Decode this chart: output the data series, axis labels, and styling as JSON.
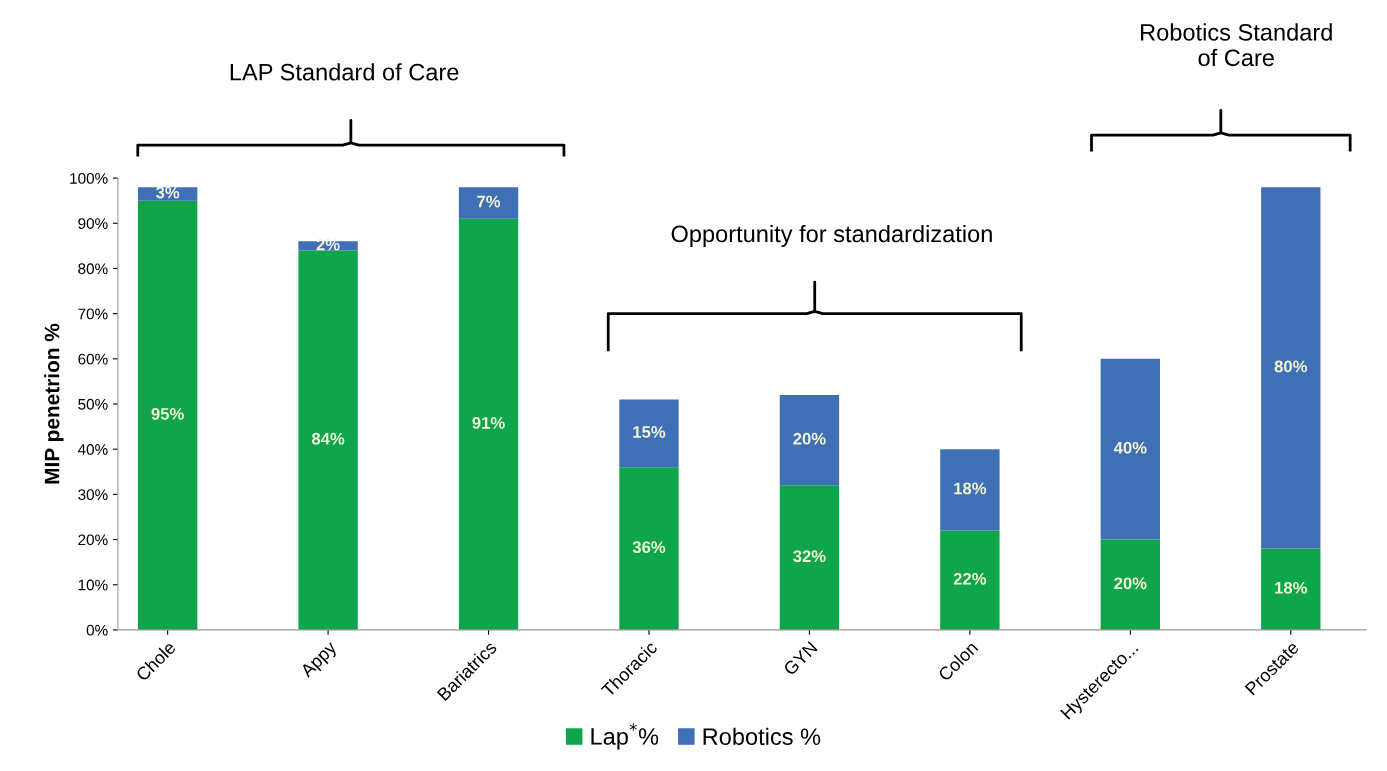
{
  "chart_data": {
    "type": "bar",
    "stacked": true,
    "ylabel": "MIP penetrion %",
    "categories": [
      "Chole",
      "Appy",
      "Bariatrics",
      "Thoracic",
      "GYN",
      "Colon",
      "Hysterecto...",
      "Prostate"
    ],
    "series": [
      {
        "name": "Lap$^{*}$%",
        "color": "#0fa54a",
        "values": [
          95,
          84,
          91,
          36,
          32,
          22,
          20,
          18
        ],
        "value_labels": [
          "95%",
          "84%",
          "91%",
          "36%",
          "32%",
          "22%",
          "20%",
          "18%"
        ]
      },
      {
        "name": "Robotics %",
        "color": "#3f6fb5",
        "values": [
          3,
          2,
          7,
          15,
          20,
          18,
          40,
          80
        ],
        "value_labels": [
          "3%",
          "2%",
          "7%",
          "15%",
          "20%",
          "18%",
          "40%",
          "80%"
        ]
      }
    ],
    "ylim": [
      0,
      100
    ],
    "yticks": [
      {
        "value": 0,
        "label": "0%"
      },
      {
        "value": 10,
        "label": "10%"
      },
      {
        "value": 20,
        "label": "20%"
      },
      {
        "value": 30,
        "label": "30%"
      },
      {
        "value": 40,
        "label": "40%"
      },
      {
        "value": 50,
        "label": "50%"
      },
      {
        "value": 60,
        "label": "60%"
      },
      {
        "value": 70,
        "label": "70%"
      },
      {
        "value": 80,
        "label": "80%"
      },
      {
        "value": 90,
        "label": "90%"
      },
      {
        "value": 100,
        "label": "100%"
      }
    ],
    "annotations": [
      "LAP Standard of Care",
      "Opportunity for standardization",
      "Robotics Standard\nof Care"
    ],
    "legend": "bottom",
    "grid": false
  }
}
